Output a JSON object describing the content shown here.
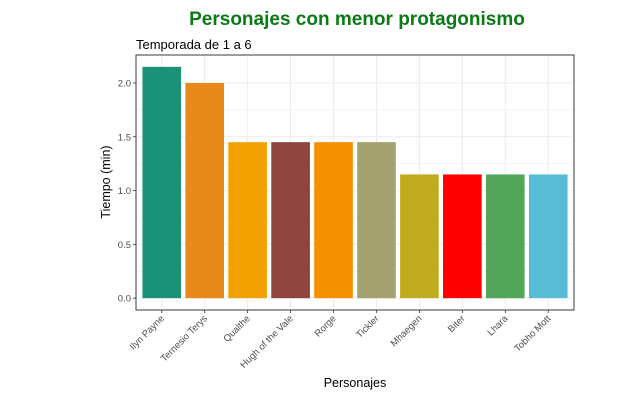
{
  "chart_data": {
    "type": "bar",
    "title": "Personajes con menor protagonismo",
    "subtitle": "Temporada de 1 a 6",
    "xlabel": "Personajes",
    "ylabel": "Tiempo (min)",
    "categories": [
      "Ilyn Payne",
      "Ternesio Terys",
      "Qualthe",
      "Hugh of the Vale",
      "Rorge",
      "Tickler",
      "Mhaegen",
      "Biter",
      "Lhara",
      "Tobho Mott"
    ],
    "values": [
      2.15,
      2.0,
      1.45,
      1.45,
      1.45,
      1.45,
      1.15,
      1.15,
      1.15,
      1.15
    ],
    "colors": [
      "#1b9278",
      "#e8891c",
      "#f2a200",
      "#8e453d",
      "#f59000",
      "#a3a270",
      "#bfab1d",
      "#ff0000",
      "#52a65a",
      "#59bcd7"
    ],
    "yticks": [
      "0.0",
      "0.5",
      "1.0",
      "1.5",
      "2.0"
    ],
    "ylim": [
      -0.11,
      2.26
    ],
    "grid": true,
    "legend": "none",
    "title_color": "#0b7a16"
  }
}
